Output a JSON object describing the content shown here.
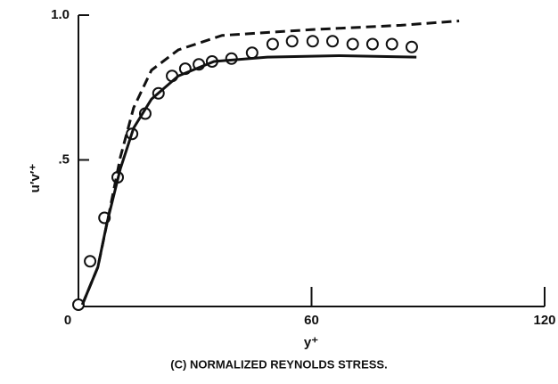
{
  "chart_data": {
    "type": "scatter",
    "xlabel": "y⁺",
    "ylabel": "u′v′⁺",
    "caption": "(C) NORMALIZED REYNOLDS STRESS.",
    "xlim": [
      0,
      120
    ],
    "ylim": [
      0,
      1
    ],
    "xticks": [
      0,
      60,
      120
    ],
    "yticks": [
      {
        "value": 0.5,
        "label": ".5"
      },
      {
        "value": 1,
        "label": "1.0"
      }
    ],
    "series": [
      {
        "color": "#111",
        "marker": "circle",
        "x": [
          0,
          3,
          6.7,
          10.1,
          13.8,
          17.2,
          20.6,
          24.1,
          27.5,
          31,
          34.4,
          39.4,
          44.7,
          50,
          55,
          60.3,
          65.4,
          70.6,
          75.7,
          80.7,
          85.8
        ],
        "values": [
          0,
          0.15,
          0.3,
          0.44,
          0.59,
          0.66,
          0.73,
          0.79,
          0.815,
          0.83,
          0.84,
          0.85,
          0.87,
          0.9,
          0.91,
          0.91,
          0.91,
          0.9,
          0.9,
          0.9,
          0.89
        ]
      },
      {
        "color": "#111",
        "line": "solid",
        "x": [
          1,
          5,
          7.3,
          10.8,
          14.2,
          18.8,
          25.7,
          34.9,
          48.6,
          67,
          87
        ],
        "values": [
          0,
          0.13,
          0.28,
          0.47,
          0.61,
          0.71,
          0.79,
          0.84,
          0.855,
          0.86,
          0.855
        ]
      },
      {
        "color": "#111",
        "line": "dashed",
        "x": [
          1,
          5,
          7.8,
          10.8,
          14.2,
          18.8,
          25.7,
          37,
          60,
          83,
          98
        ],
        "values": [
          0,
          0.13,
          0.31,
          0.51,
          0.68,
          0.81,
          0.88,
          0.93,
          0.95,
          0.965,
          0.98
        ]
      }
    ]
  }
}
